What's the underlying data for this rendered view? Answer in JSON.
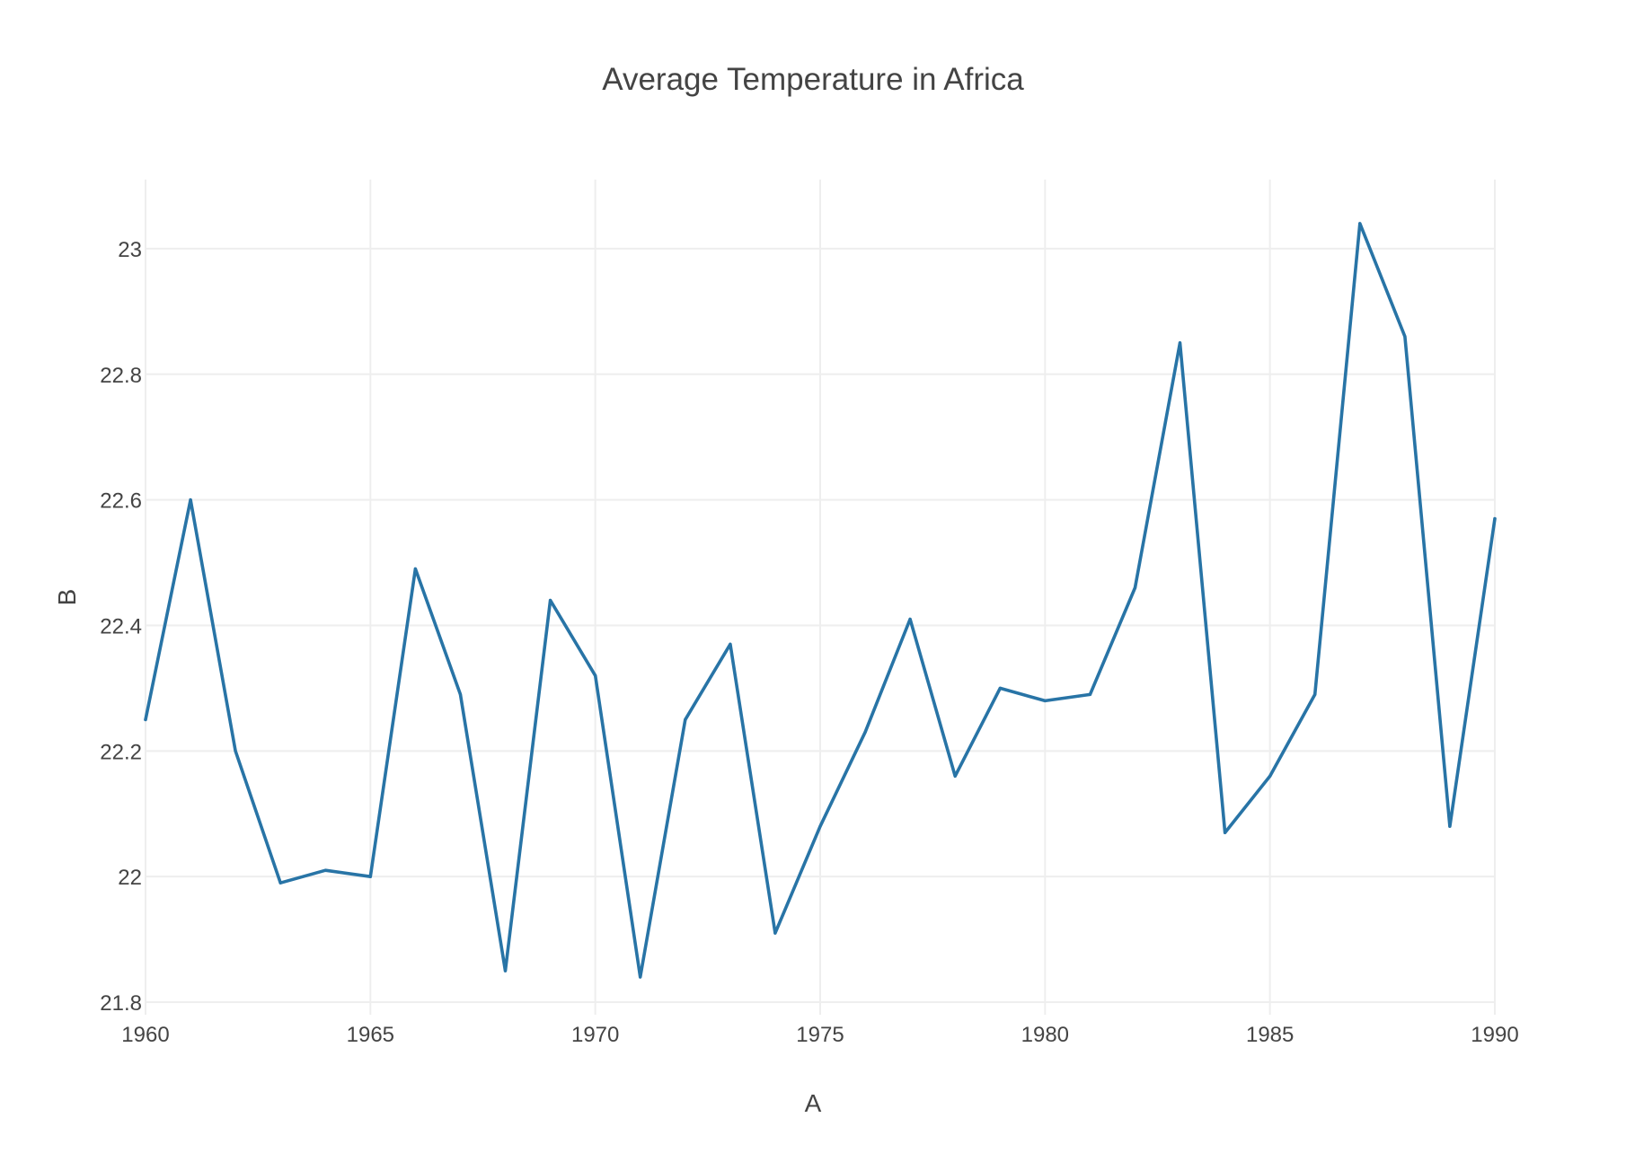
{
  "chart_data": {
    "type": "line",
    "title": "Average Temperature in Africa",
    "xlabel": "A",
    "ylabel": "B",
    "xlim": [
      1960,
      1990
    ],
    "ylim": [
      21.78,
      23.11
    ],
    "grid": true,
    "x_ticks": [
      1960,
      1965,
      1970,
      1975,
      1980,
      1985,
      1990
    ],
    "y_ticks": [
      21.8,
      22,
      22.2,
      22.4,
      22.6,
      22.8,
      23
    ],
    "x_tick_labels": [
      "1960",
      "1965",
      "1970",
      "1975",
      "1980",
      "1985",
      "1990"
    ],
    "y_tick_labels": [
      "21.8",
      "22",
      "22.2",
      "22.4",
      "22.6",
      "22.8",
      "23"
    ],
    "series": [
      {
        "color": "#2874a6",
        "x": [
          1960,
          1961,
          1962,
          1963,
          1964,
          1965,
          1966,
          1967,
          1968,
          1969,
          1970,
          1971,
          1972,
          1973,
          1974,
          1975,
          1976,
          1977,
          1978,
          1979,
          1980,
          1981,
          1982,
          1983,
          1984,
          1985,
          1986,
          1987,
          1988,
          1989,
          1990
        ],
        "values": [
          22.25,
          22.6,
          22.2,
          21.99,
          22.01,
          22.0,
          22.49,
          22.29,
          21.85,
          22.44,
          22.32,
          21.84,
          22.25,
          22.37,
          21.91,
          22.08,
          22.23,
          22.41,
          22.16,
          22.3,
          22.28,
          22.29,
          22.46,
          22.85,
          22.07,
          22.16,
          22.29,
          23.04,
          22.86,
          22.08,
          22.57
        ]
      }
    ]
  }
}
